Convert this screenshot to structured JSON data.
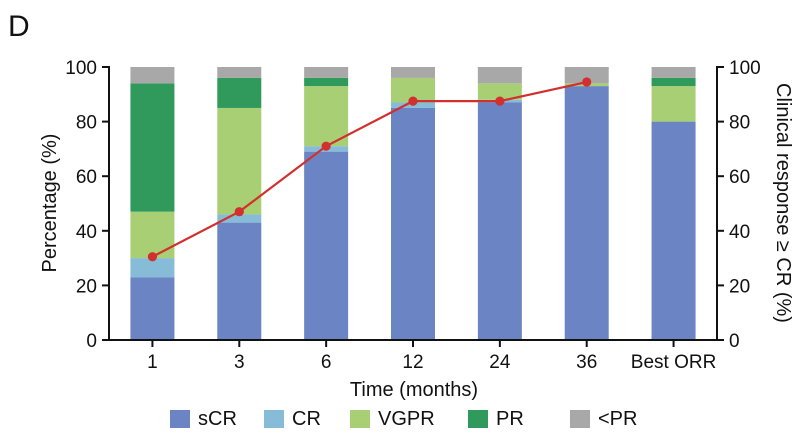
{
  "panel_label": "D",
  "chart_data": {
    "type": "bar",
    "stacked": true,
    "categories": [
      "1",
      "3",
      "6",
      "12",
      "24",
      "36",
      "Best ORR"
    ],
    "xlabel": "Time (months)",
    "ylabel": "Percentage (%)",
    "ylabel_right": "Clinical response ≥ CR (%)",
    "ylim": [
      0,
      100
    ],
    "ylim_right": [
      0,
      100
    ],
    "yticks": [
      0,
      20,
      40,
      60,
      80,
      100
    ],
    "grid": false,
    "legend_position": "bottom",
    "series": [
      {
        "name": "sCR",
        "color": "#6b84c4",
        "values": [
          23,
          43,
          69,
          85,
          87,
          93,
          80
        ]
      },
      {
        "name": "CR",
        "color": "#86bcd8",
        "values": [
          7,
          3,
          2,
          2,
          1,
          0,
          0
        ]
      },
      {
        "name": "VGPR",
        "color": "#a9cf75",
        "values": [
          17,
          39,
          22,
          9,
          6,
          1,
          13
        ]
      },
      {
        "name": "PR",
        "color": "#2f9a5c",
        "values": [
          47,
          11,
          3,
          0,
          0,
          0,
          3
        ]
      },
      {
        "name": "<PR",
        "color": "#a8a8a8",
        "values": [
          6,
          4,
          4,
          4,
          6,
          6,
          4
        ]
      }
    ],
    "line_series": {
      "axis": "right",
      "color": "#d22f2f",
      "values": [
        30.5,
        47,
        71,
        87.5,
        87.5,
        94.5,
        null
      ]
    }
  }
}
